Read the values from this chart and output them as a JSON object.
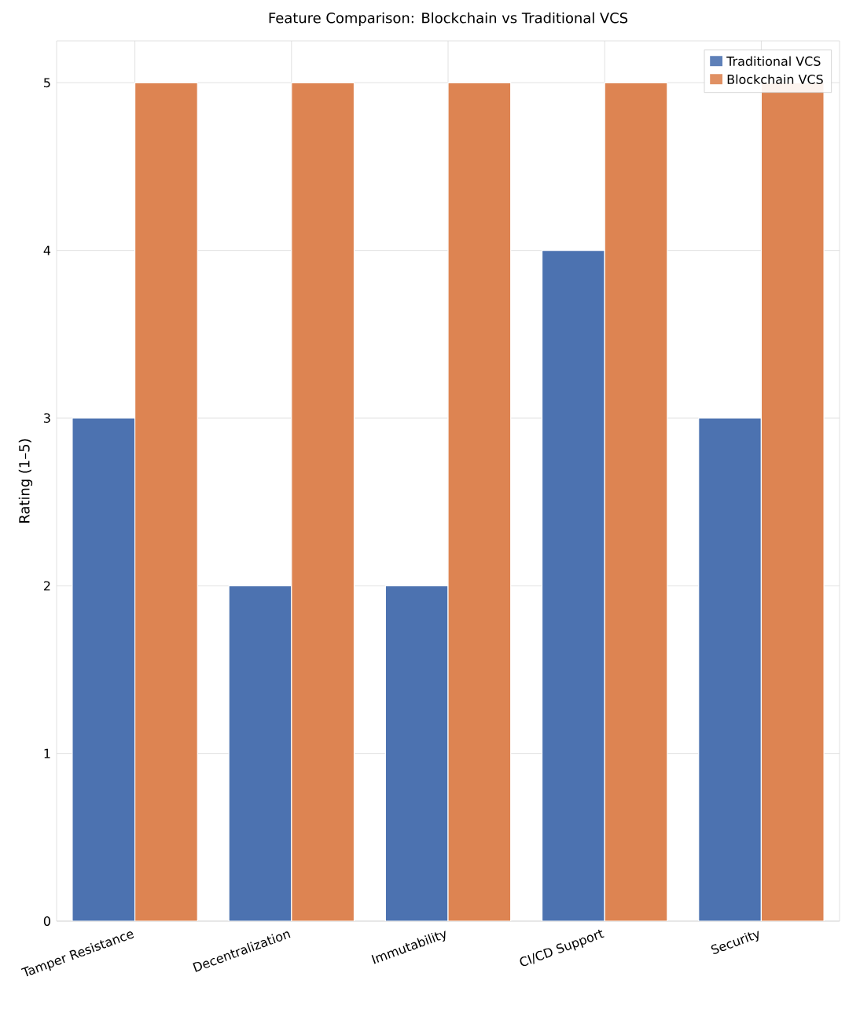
{
  "chart_data": {
    "type": "bar",
    "title": "Feature Comparison: Blockchain vs Traditional VCS",
    "ylabel": "Rating (1–5)",
    "categories": [
      "Tamper Resistance",
      "Decentralization",
      "Immutability",
      "CI/CD Support",
      "Security"
    ],
    "series": [
      {
        "name": "Traditional VCS",
        "color": "#4c72b0",
        "values": [
          3,
          2,
          2,
          4,
          3
        ]
      },
      {
        "name": "Blockchain VCS",
        "color": "#dd8452",
        "values": [
          5,
          5,
          5,
          5,
          5
        ]
      }
    ],
    "ylim": [
      0,
      5.25
    ],
    "yticks": [
      0,
      1,
      2,
      3,
      4,
      5
    ],
    "grid": true,
    "legend": "top right"
  }
}
